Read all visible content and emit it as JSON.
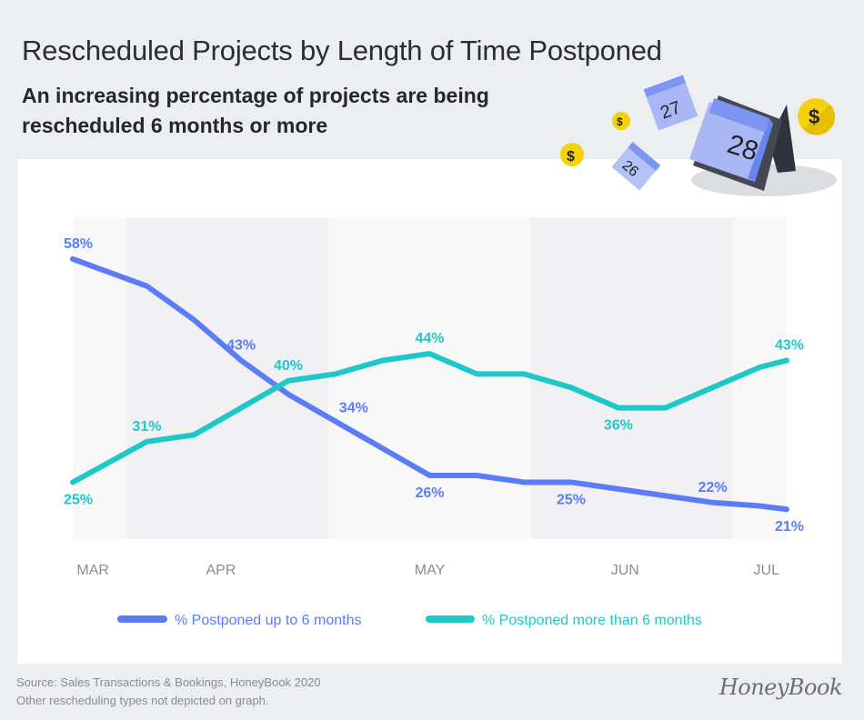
{
  "header": {
    "title": "Rescheduled Projects by Length of Time Postponed",
    "subtitle": "An increasing percentage of projects are being rescheduled 6 months or more"
  },
  "illustration": {
    "calendar_pages": [
      "28",
      "27",
      "26"
    ],
    "coin_symbol": "$"
  },
  "footer": {
    "source_line1": "Source: Sales Transactions & Bookings, HoneyBook 2020",
    "source_line2": "Other rescheduling types not depicted on graph.",
    "logo": "HoneyBook"
  },
  "colors": {
    "blue": "#5b7cf7",
    "teal": "#1ec8c8",
    "band_light": "#f8f8f9",
    "band_dark": "#f1f1f4",
    "axis_text": "#8a8c91"
  },
  "chart_data": {
    "type": "line",
    "title": "Rescheduled Projects by Length of Time Postponed",
    "xlabel": "",
    "ylabel": "",
    "x_unit": "days relative to May 1",
    "x": [
      -53,
      -42,
      -35,
      -28,
      -21,
      -14,
      -7,
      0,
      7,
      14,
      21,
      28,
      35,
      42,
      49,
      53
    ],
    "xlim": [
      -53,
      53
    ],
    "ylim": [
      17,
      60
    ],
    "grid": false,
    "month_ticks": [
      {
        "label": "MAR",
        "x": -50
      },
      {
        "label": "APR",
        "x": -31
      },
      {
        "label": "MAY",
        "x": 0
      },
      {
        "label": "JUN",
        "x": 29
      },
      {
        "label": "JUL",
        "x": 50
      }
    ],
    "bands": [
      {
        "from": -53,
        "to": -45,
        "shade": "light"
      },
      {
        "from": -45,
        "to": -15,
        "shade": "dark"
      },
      {
        "from": -15,
        "to": 15,
        "shade": "light"
      },
      {
        "from": 15,
        "to": 45,
        "shade": "dark"
      },
      {
        "from": 45,
        "to": 53,
        "shade": "light"
      }
    ],
    "series": [
      {
        "name": "% Postponed up to 6 months",
        "color": "#5b7cf7",
        "values": [
          58,
          54,
          49,
          43,
          38,
          34,
          30,
          26,
          26,
          25,
          25,
          24,
          23,
          22,
          21.5,
          21
        ],
        "labels": [
          {
            "index": 0,
            "text": "58%",
            "pos": "above"
          },
          {
            "index": 3,
            "text": "43%",
            "pos": "above"
          },
          {
            "index": 5,
            "text": "34%",
            "pos": "above-right"
          },
          {
            "index": 7,
            "text": "26%",
            "pos": "below"
          },
          {
            "index": 10,
            "text": "25%",
            "pos": "below"
          },
          {
            "index": 13,
            "text": "22%",
            "pos": "above"
          },
          {
            "index": 15,
            "text": "21%",
            "pos": "below"
          }
        ]
      },
      {
        "name": "% Postponed more than 6 months",
        "color": "#1ec8c8",
        "values": [
          25,
          31,
          32,
          36,
          40,
          41,
          43,
          44,
          41,
          41,
          39,
          36,
          36,
          39,
          42,
          43
        ],
        "labels": [
          {
            "index": 0,
            "text": "25%",
            "pos": "below"
          },
          {
            "index": 1,
            "text": "31%",
            "pos": "above"
          },
          {
            "index": 4,
            "text": "40%",
            "pos": "above"
          },
          {
            "index": 7,
            "text": "44%",
            "pos": "above"
          },
          {
            "index": 11,
            "text": "36%",
            "pos": "below"
          },
          {
            "index": 15,
            "text": "43%",
            "pos": "above"
          }
        ]
      }
    ],
    "legend": {
      "placement": "bottom-center",
      "items": [
        "% Postponed up to 6 months",
        "% Postponed more than 6 months"
      ]
    }
  }
}
